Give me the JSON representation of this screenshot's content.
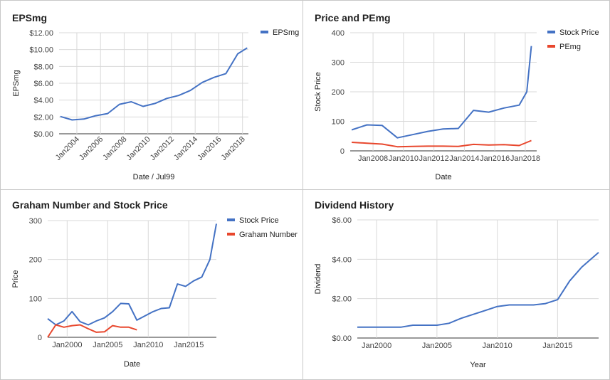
{
  "chart_data": [
    {
      "type": "line",
      "title": "EPSmg",
      "xlabel": "Date / Jul99",
      "ylabel": "EPSmg",
      "x_type": "year",
      "xlim": [
        2002.5,
        2018.5
      ],
      "ylim": [
        0,
        12
      ],
      "y_ticks": [
        0,
        2,
        4,
        6,
        8,
        10,
        12
      ],
      "y_tick_labels": [
        "$0.00",
        "$2.00",
        "$4.00",
        "$6.00",
        "$8.00",
        "$10.00",
        "$12.00"
      ],
      "x_ticks": [
        2004,
        2006,
        2008,
        2010,
        2012,
        2014,
        2016,
        2018
      ],
      "x_tick_labels": [
        "Jan2004",
        "Jan2006",
        "Jan2008",
        "Jan2010",
        "Jan2012",
        "Jan2014",
        "Jan2016",
        "Jan2018"
      ],
      "x_tick_rotation": -45,
      "vertical_grid": true,
      "legend_position": "right",
      "series": [
        {
          "name": "EPSmg",
          "color": "#4472c4",
          "x": [
            2002.6,
            2003.6,
            2004.6,
            2005.6,
            2006.6,
            2007.6,
            2008.6,
            2009.6,
            2010.6,
            2011.6,
            2012.6,
            2013.6,
            2014.6,
            2015.6,
            2016.6,
            2017.6,
            2018.4
          ],
          "values": [
            2.05,
            1.65,
            1.75,
            2.15,
            2.4,
            3.5,
            3.8,
            3.25,
            3.6,
            4.2,
            4.55,
            5.15,
            6.1,
            6.7,
            7.15,
            9.5,
            10.2
          ]
        }
      ]
    },
    {
      "type": "line",
      "title": "Price and PEmg",
      "xlabel": "Date",
      "ylabel": "Stock Price",
      "x_type": "year",
      "xlim": [
        2006.5,
        2018.75
      ],
      "ylim": [
        0,
        400
      ],
      "y_ticks": [
        0,
        100,
        200,
        300,
        400
      ],
      "y_tick_labels": [
        "0",
        "100",
        "200",
        "300",
        "400"
      ],
      "x_ticks": [
        2008,
        2010,
        2012,
        2014,
        2016,
        2018
      ],
      "x_tick_labels": [
        "Jan2008",
        "Jan2010",
        "Jan2012",
        "Jan2014",
        "Jan2016",
        "Jan2018"
      ],
      "x_tick_rotation": 0,
      "vertical_grid": true,
      "legend_position": "right",
      "series": [
        {
          "name": "Stock Price",
          "color": "#4472c4",
          "x": [
            2006.6,
            2007.6,
            2008.6,
            2009.6,
            2010.6,
            2011.6,
            2012.6,
            2013.6,
            2014.6,
            2015.6,
            2016.6,
            2017.6,
            2018.1,
            2018.4
          ],
          "values": [
            71,
            88,
            86,
            44,
            55,
            66,
            74,
            76,
            137,
            131,
            145,
            155,
            200,
            355
          ]
        },
        {
          "name": "PEmg",
          "color": "#e8472d",
          "x": [
            2006.6,
            2007.6,
            2008.6,
            2009.6,
            2010.6,
            2011.6,
            2012.6,
            2013.6,
            2014.6,
            2015.6,
            2016.6,
            2017.6,
            2018.4
          ],
          "values": [
            29,
            26,
            23,
            14,
            15,
            16,
            16,
            15,
            22,
            20,
            21,
            18,
            35
          ]
        }
      ]
    },
    {
      "type": "line",
      "title": "Graham Number and Stock Price",
      "xlabel": "Date",
      "ylabel": "Price",
      "x_type": "year",
      "xlim": [
        1997.6,
        2018.4
      ],
      "ylim": [
        0,
        300
      ],
      "y_ticks": [
        0,
        100,
        200,
        300
      ],
      "y_tick_labels": [
        "0",
        "100",
        "200",
        "300"
      ],
      "x_ticks": [
        2000,
        2005,
        2010,
        2015
      ],
      "x_tick_labels": [
        "Jan2000",
        "Jan2005",
        "Jan2010",
        "Jan2015"
      ],
      "x_tick_rotation": 0,
      "vertical_grid": true,
      "legend_position": "right",
      "series": [
        {
          "name": "Stock Price",
          "color": "#4472c4",
          "x": [
            1997.6,
            1998.6,
            1999.6,
            2000.6,
            2001.6,
            2002.6,
            2003.6,
            2004.6,
            2005.6,
            2006.6,
            2007.6,
            2008.6,
            2009.6,
            2010.6,
            2011.6,
            2012.6,
            2013.6,
            2014.6,
            2015.6,
            2016.6,
            2017.6,
            2018.4
          ],
          "values": [
            48,
            32,
            42,
            66,
            40,
            32,
            42,
            50,
            66,
            87,
            86,
            44,
            55,
            66,
            74,
            76,
            137,
            131,
            145,
            155,
            200,
            292
          ]
        },
        {
          "name": "Graham Number",
          "color": "#e8472d",
          "x": [
            1997.6,
            1998.6,
            1999.6,
            2000.6,
            2001.6,
            2002.6,
            2003.6,
            2004.6,
            2005.6,
            2006.6,
            2007.6,
            2008.6
          ],
          "values": [
            0,
            32,
            26,
            30,
            32,
            22,
            13,
            14,
            30,
            26,
            26,
            19
          ]
        }
      ]
    },
    {
      "type": "line",
      "title": "Dividend History",
      "xlabel": "Year",
      "ylabel": "Dividend",
      "x_type": "year",
      "xlim": [
        1998.4,
        2018.4
      ],
      "ylim": [
        0,
        6
      ],
      "y_ticks": [
        0,
        2,
        4,
        6
      ],
      "y_tick_labels": [
        "$0.00",
        "$2.00",
        "$4.00",
        "$6.00"
      ],
      "x_ticks": [
        2000,
        2005,
        2010,
        2015
      ],
      "x_tick_labels": [
        "Jan2000",
        "Jan2005",
        "Jan2010",
        "Jan2015"
      ],
      "x_tick_rotation": 0,
      "vertical_grid": true,
      "legend_position": "none",
      "series": [
        {
          "name": "Dividend",
          "color": "#4472c4",
          "x": [
            1998.4,
            1999,
            2000,
            2001,
            2002,
            2003,
            2004,
            2005,
            2006,
            2007,
            2008,
            2009,
            2010,
            2011,
            2012,
            2013,
            2014,
            2015,
            2016,
            2017,
            2018.4
          ],
          "values": [
            0.55,
            0.55,
            0.55,
            0.55,
            0.55,
            0.65,
            0.65,
            0.65,
            0.75,
            1.0,
            1.2,
            1.4,
            1.6,
            1.68,
            1.68,
            1.68,
            1.75,
            1.95,
            2.9,
            3.6,
            4.35
          ]
        }
      ]
    }
  ]
}
